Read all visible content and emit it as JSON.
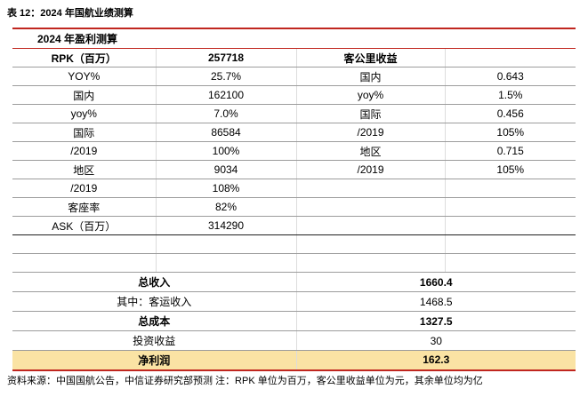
{
  "title": "表 12：2024 年国航业绩测算",
  "table": {
    "header": "2024 年盈利测算",
    "upper_rows": [
      {
        "cells": [
          "RPK（百万）",
          "257718",
          "客公里收益",
          ""
        ],
        "bold": true
      },
      {
        "cells": [
          "YOY%",
          "25.7%",
          "国内",
          "0.643"
        ]
      },
      {
        "cells": [
          "国内",
          "162100",
          "yoy%",
          "1.5%"
        ]
      },
      {
        "cells": [
          "yoy%",
          "7.0%",
          "国际",
          "0.456"
        ]
      },
      {
        "cells": [
          "国际",
          "86584",
          "/2019",
          "105%"
        ]
      },
      {
        "cells": [
          "/2019",
          "100%",
          "地区",
          "0.715"
        ]
      },
      {
        "cells": [
          "地区",
          "9034",
          "/2019",
          "105%"
        ]
      },
      {
        "cells": [
          "/2019",
          "108%",
          "",
          ""
        ]
      },
      {
        "cells": [
          "客座率",
          "82%",
          "",
          ""
        ]
      },
      {
        "cells": [
          "ASK（百万）",
          "314290",
          "",
          ""
        ],
        "section_end": true
      },
      {
        "cells": [
          "",
          "",
          "",
          ""
        ],
        "empty": true
      },
      {
        "cells": [
          "",
          "",
          "",
          ""
        ],
        "empty": true
      }
    ],
    "lower_rows": [
      {
        "label": "总收入",
        "value": "1660.4",
        "bold": true
      },
      {
        "label": "其中：客运收入",
        "value": "1468.5"
      },
      {
        "label": "总成本",
        "value": "1327.5",
        "bold": true
      },
      {
        "label": "投资收益",
        "value": "30"
      },
      {
        "label": "净利润",
        "value": "162.3",
        "bold": true,
        "highlight": true
      }
    ]
  },
  "footer": {
    "source_note": "资料来源：中国国航公告，中信证券研究部预测 注：RPK 单位为百万，客公里收益单位为元，其余单位均为亿"
  },
  "colors": {
    "accent_red": "#C0261F",
    "highlight_yellow": "#FAE3A4",
    "row_divider": "#9C9C9C",
    "column_divider": "#DCDCDC",
    "section_divider": "#1F1F1F"
  }
}
